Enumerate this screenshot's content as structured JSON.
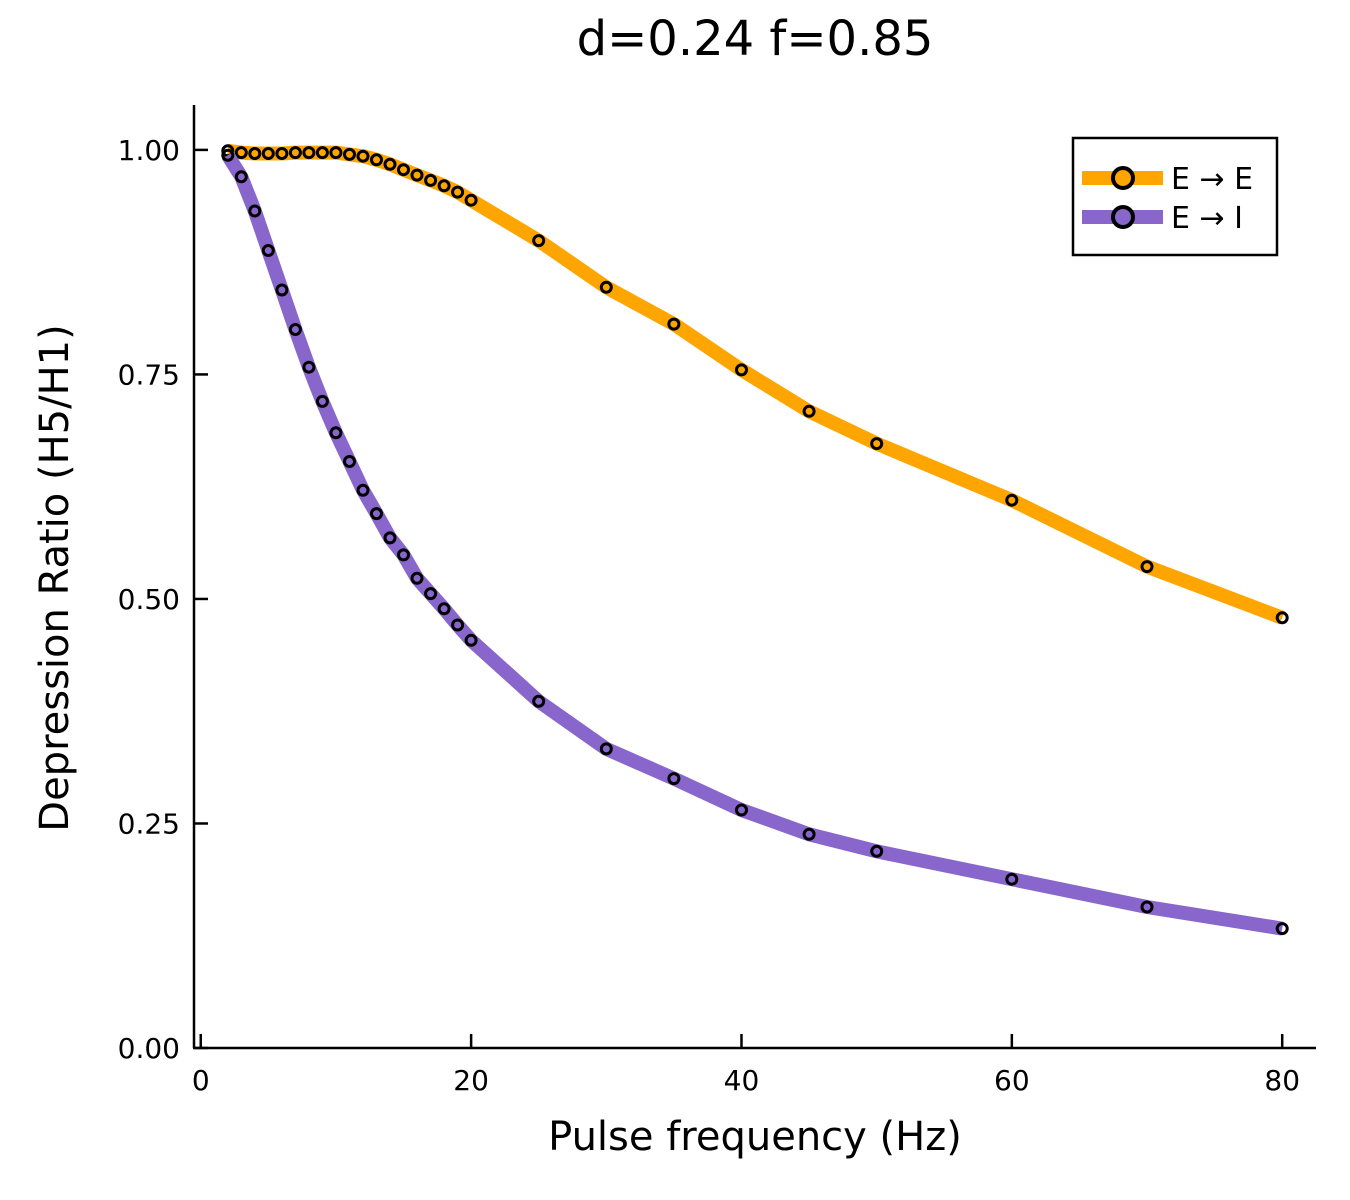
{
  "chart_data": {
    "type": "line",
    "title": "d=0.24 f=0.85",
    "xlabel": "Pulse frequency (Hz)",
    "ylabel": "Depression Ratio (H5/H1)",
    "xlim": [
      -0.5,
      82.5
    ],
    "ylim": [
      0.0,
      1.05
    ],
    "xticks": [
      0,
      20,
      40,
      60,
      80
    ],
    "xtick_labels": [
      "0",
      "20",
      "40",
      "60",
      "80"
    ],
    "yticks": [
      0.0,
      0.25,
      0.5,
      0.75,
      1.0
    ],
    "ytick_labels": [
      "0.00",
      "0.25",
      "0.50",
      "0.75",
      "1.00"
    ],
    "grid": false,
    "legend_position": "top-right",
    "x": [
      2,
      3,
      4,
      5,
      6,
      7,
      8,
      9,
      10,
      11,
      12,
      13,
      14,
      15,
      16,
      17,
      18,
      19,
      20,
      25,
      30,
      35,
      40,
      45,
      50,
      60,
      70,
      80
    ],
    "series": [
      {
        "name": "E → E",
        "color": "#ffa500",
        "values": [
          0.999,
          0.997,
          0.996,
          0.996,
          0.996,
          0.997,
          0.997,
          0.997,
          0.997,
          0.995,
          0.993,
          0.989,
          0.984,
          0.978,
          0.972,
          0.966,
          0.96,
          0.953,
          0.944,
          0.899,
          0.847,
          0.806,
          0.755,
          0.709,
          0.673,
          0.61,
          0.536,
          0.479
        ]
      },
      {
        "name": "E → I",
        "color": "#8866cc",
        "values": [
          0.994,
          0.97,
          0.932,
          0.888,
          0.844,
          0.8,
          0.758,
          0.72,
          0.685,
          0.653,
          0.621,
          0.595,
          0.568,
          0.549,
          0.523,
          0.506,
          0.489,
          0.471,
          0.454,
          0.386,
          0.333,
          0.3,
          0.265,
          0.238,
          0.219,
          0.188,
          0.157,
          0.133
        ]
      }
    ]
  }
}
